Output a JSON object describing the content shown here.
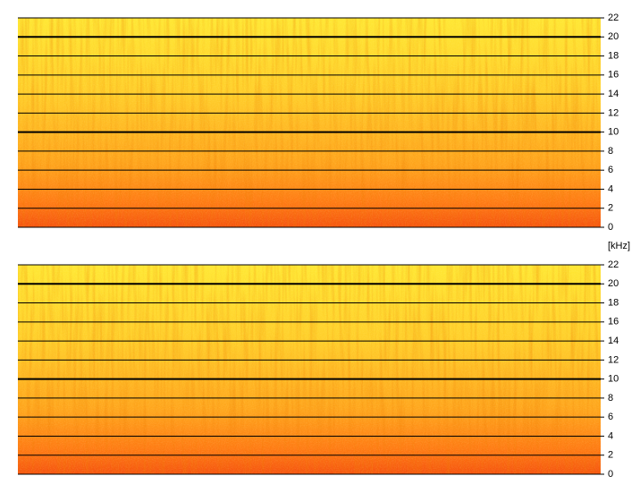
{
  "chart_data": [
    {
      "type": "spectrogram",
      "y_label": "[kHz]",
      "ylim": [
        0,
        22
      ],
      "yticks": [
        0,
        2,
        4,
        6,
        8,
        10,
        12,
        14,
        16,
        18,
        20,
        22
      ],
      "major_yticks": [
        10,
        20
      ],
      "grid": true
    },
    {
      "type": "spectrogram",
      "ylim": [
        0,
        22
      ],
      "yticks": [
        0,
        2,
        4,
        6,
        8,
        10,
        12,
        14,
        16,
        18,
        20,
        22
      ],
      "major_yticks": [
        10,
        20
      ],
      "grid": true
    }
  ]
}
